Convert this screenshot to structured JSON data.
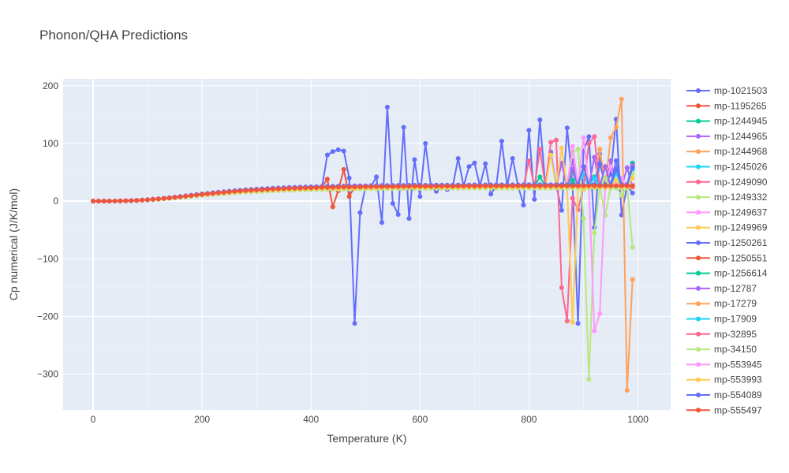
{
  "chart_data": {
    "type": "line",
    "title": "Phonon/QHA Predictions",
    "xlabel": "Temperature (K)",
    "ylabel": "Cp numerical (J/K/mol)",
    "xlim": [
      -55,
      1060
    ],
    "ylim": [
      -362,
      212
    ],
    "xticks": [
      0,
      200,
      400,
      600,
      800,
      1000
    ],
    "yticks": [
      -300,
      -200,
      -100,
      0,
      100,
      200
    ],
    "xtick_labels": [
      "0",
      "200",
      "400",
      "600",
      "800",
      "1000"
    ],
    "ytick_labels": [
      "−300",
      "−200",
      "−100",
      "0",
      "100",
      "200"
    ],
    "grid": true,
    "legend_position": "right",
    "series": [
      {
        "name": "mp-1021503",
        "color": "#636efa",
        "plateau": 27,
        "end": 990,
        "outliers": [
          [
            430,
            80
          ],
          [
            440,
            86
          ],
          [
            450,
            89
          ],
          [
            460,
            87
          ],
          [
            470,
            40
          ],
          [
            480,
            -212
          ],
          [
            490,
            -20
          ],
          [
            520,
            42
          ],
          [
            530,
            -37
          ],
          [
            540,
            163
          ],
          [
            550,
            -4
          ],
          [
            560,
            -23
          ],
          [
            570,
            128
          ],
          [
            580,
            -30
          ],
          [
            590,
            72
          ],
          [
            600,
            8
          ],
          [
            610,
            100
          ],
          [
            630,
            17
          ],
          [
            650,
            20
          ],
          [
            670,
            74
          ],
          [
            690,
            60
          ],
          [
            700,
            66
          ],
          [
            720,
            65
          ],
          [
            730,
            12
          ],
          [
            750,
            104
          ],
          [
            770,
            74
          ],
          [
            790,
            -7
          ],
          [
            800,
            123
          ],
          [
            810,
            3
          ],
          [
            820,
            141
          ],
          [
            840,
            85
          ],
          [
            860,
            -16
          ],
          [
            870,
            127
          ],
          [
            890,
            -212
          ],
          [
            900,
            87
          ],
          [
            910,
            112
          ],
          [
            920,
            -46
          ],
          [
            930,
            82
          ],
          [
            950,
            47
          ],
          [
            960,
            142
          ],
          [
            970,
            -24
          ],
          [
            990,
            14
          ]
        ]
      },
      {
        "name": "mp-1195265",
        "color": "#ef553b",
        "plateau": 28,
        "end": 990,
        "outliers": [
          [
            430,
            38
          ],
          [
            440,
            -10
          ],
          [
            450,
            18
          ],
          [
            460,
            55
          ],
          [
            470,
            8
          ],
          [
            480,
            25
          ]
        ]
      },
      {
        "name": "mp-1244945",
        "color": "#00cc96",
        "plateau": 24,
        "end": 990,
        "outliers": [
          [
            880,
            36
          ],
          [
            920,
            42
          ],
          [
            960,
            55
          ],
          [
            990,
            65
          ]
        ]
      },
      {
        "name": "mp-1244965",
        "color": "#ab63fa",
        "plateau": 25,
        "end": 990,
        "outliers": [
          [
            860,
            66
          ],
          [
            880,
            70
          ],
          [
            920,
            76
          ],
          [
            950,
            70
          ],
          [
            980,
            58
          ]
        ]
      },
      {
        "name": "mp-1244968",
        "color": "#ffa15a",
        "plateau": 26,
        "end": 990,
        "outliers": [
          [
            930,
            90
          ],
          [
            950,
            110
          ],
          [
            960,
            128
          ],
          [
            970,
            177
          ],
          [
            980,
            -328
          ],
          [
            990,
            -136
          ]
        ]
      },
      {
        "name": "mp-1245026",
        "color": "#19d3f3",
        "plateau": 25,
        "end": 990,
        "outliers": [
          [
            900,
            45
          ],
          [
            960,
            52
          ],
          [
            990,
            60
          ]
        ]
      },
      {
        "name": "mp-1249090",
        "color": "#ff6692",
        "plateau": 26,
        "end": 990,
        "outliers": [
          [
            800,
            70
          ],
          [
            820,
            90
          ],
          [
            840,
            102
          ],
          [
            850,
            106
          ],
          [
            860,
            -150
          ],
          [
            870,
            -208
          ],
          [
            880,
            5
          ],
          [
            890,
            -15
          ],
          [
            910,
            100
          ],
          [
            920,
            112
          ]
        ]
      },
      {
        "name": "mp-1249332",
        "color": "#b6e880",
        "plateau": 25,
        "end": 990,
        "outliers": [
          [
            880,
            86
          ],
          [
            890,
            90
          ],
          [
            900,
            -30
          ],
          [
            910,
            -309
          ],
          [
            920,
            -55
          ],
          [
            940,
            -25
          ],
          [
            970,
            10
          ],
          [
            990,
            -80
          ]
        ]
      },
      {
        "name": "mp-1249637",
        "color": "#ff97ff",
        "plateau": 27,
        "end": 990,
        "outliers": [
          [
            880,
            95
          ],
          [
            900,
            110
          ],
          [
            920,
            -225
          ],
          [
            930,
            -195
          ],
          [
            950,
            60
          ],
          [
            970,
            40
          ]
        ]
      },
      {
        "name": "mp-1249969",
        "color": "#fecb52",
        "plateau": 24,
        "end": 990,
        "outliers": [
          [
            840,
            80
          ],
          [
            860,
            92
          ],
          [
            880,
            -210
          ],
          [
            900,
            20
          ],
          [
            940,
            30
          ]
        ]
      },
      {
        "name": "mp-1250261",
        "color": "#636efa",
        "plateau": 29,
        "end": 990,
        "outliers": [
          [
            900,
            60
          ],
          [
            930,
            65
          ],
          [
            960,
            70
          ],
          [
            990,
            66
          ]
        ]
      },
      {
        "name": "mp-1250551",
        "color": "#ef553b",
        "plateau": 27,
        "end": 990,
        "outliers": []
      },
      {
        "name": "mp-1256614",
        "color": "#00cc96",
        "plateau": 26,
        "end": 990,
        "outliers": [
          [
            820,
            42
          ],
          [
            880,
            50
          ],
          [
            940,
            60
          ],
          [
            990,
            66
          ]
        ]
      },
      {
        "name": "mp-12787",
        "color": "#ab63fa",
        "plateau": 25,
        "end": 990,
        "outliers": [
          [
            880,
            55
          ],
          [
            940,
            60
          ],
          [
            990,
            62
          ]
        ]
      },
      {
        "name": "mp-17279",
        "color": "#ffa15a",
        "plateau": 24,
        "end": 990,
        "outliers": []
      },
      {
        "name": "mp-17909",
        "color": "#19d3f3",
        "plateau": 27,
        "end": 990,
        "outliers": [
          [
            920,
            40
          ],
          [
            960,
            48
          ],
          [
            990,
            55
          ]
        ]
      },
      {
        "name": "mp-32895",
        "color": "#ff6692",
        "plateau": 26,
        "end": 990,
        "outliers": []
      },
      {
        "name": "mp-34150",
        "color": "#b6e880",
        "plateau": 23,
        "end": 990,
        "outliers": [
          [
            940,
            40
          ],
          [
            990,
            48
          ]
        ]
      },
      {
        "name": "mp-553945",
        "color": "#ff97ff",
        "plateau": 28,
        "end": 990,
        "outliers": []
      },
      {
        "name": "mp-553993",
        "color": "#fecb52",
        "plateau": 25,
        "end": 990,
        "outliers": [
          [
            960,
            36
          ],
          [
            990,
            40
          ]
        ]
      },
      {
        "name": "mp-554089",
        "color": "#636efa",
        "plateau": 28,
        "end": 990,
        "outliers": [
          [
            960,
            56
          ],
          [
            990,
            58
          ]
        ]
      },
      {
        "name": "mp-555497",
        "color": "#ef553b",
        "plateau": 27,
        "end": 990,
        "outliers": []
      }
    ]
  }
}
